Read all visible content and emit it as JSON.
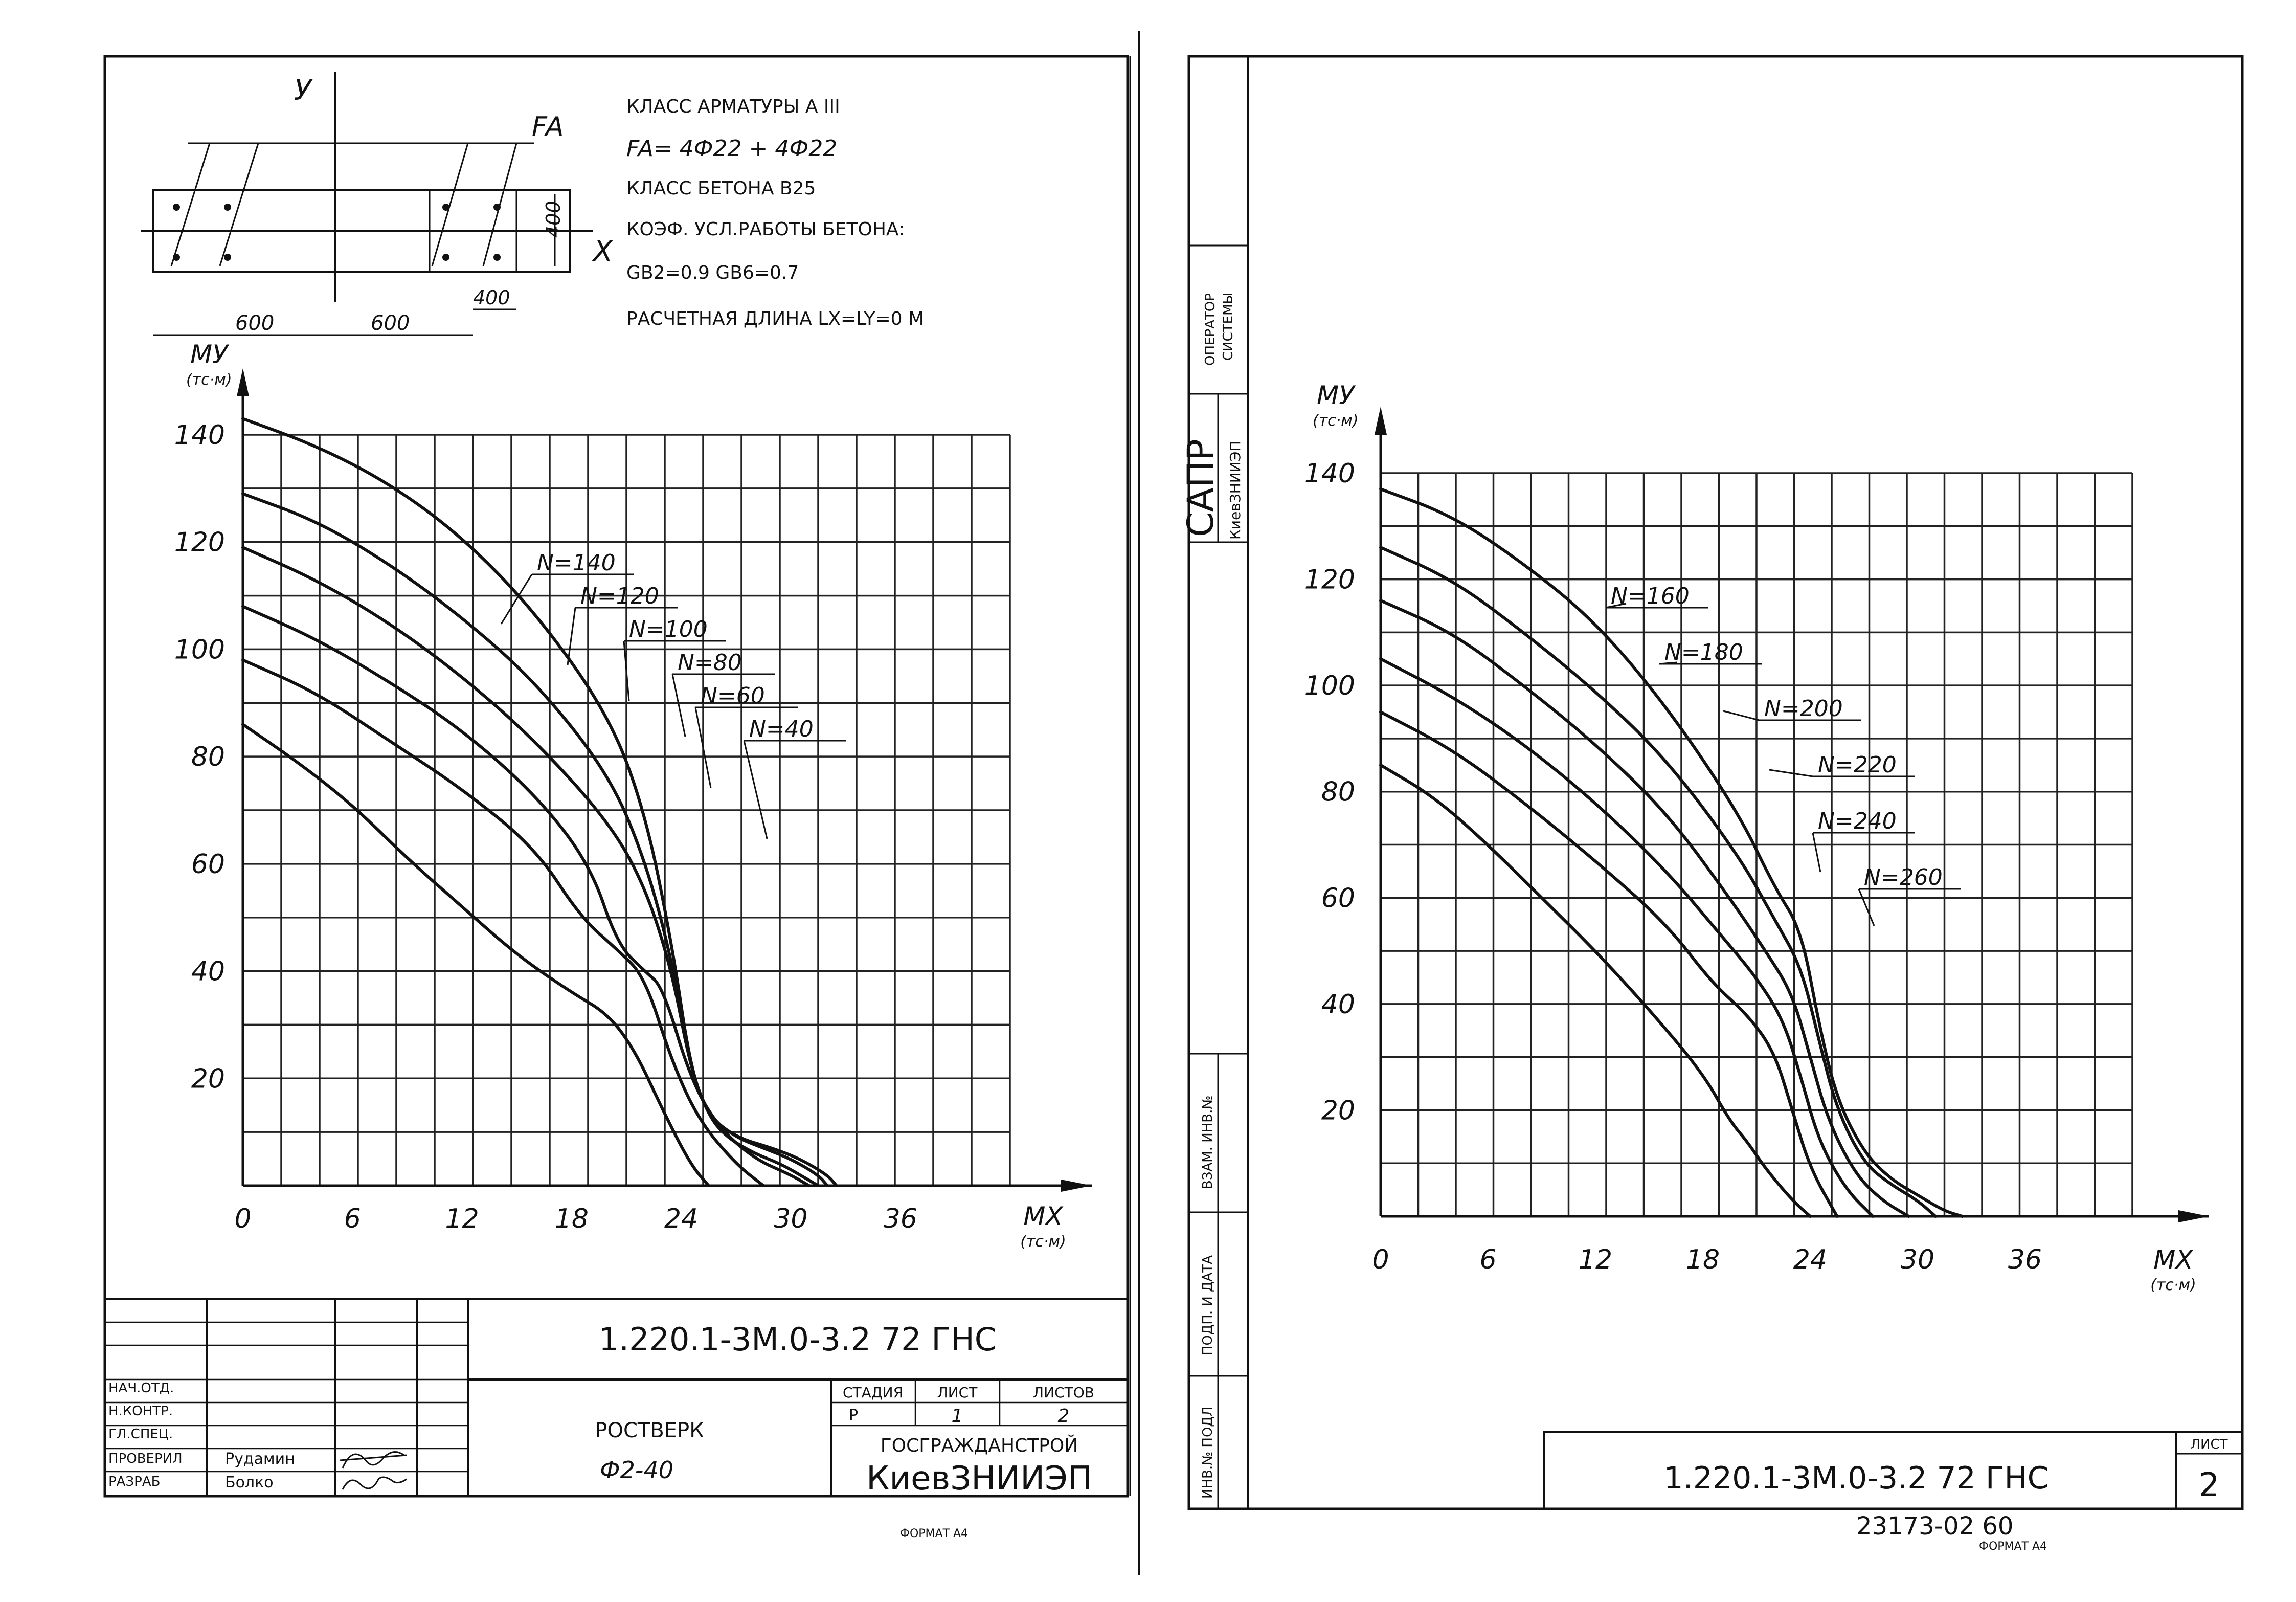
{
  "left_sheet": {
    "section_axis_y": "У",
    "section_axis_x": "X",
    "section_fa_label": "FA",
    "section_dim_height": "400",
    "section_dim_cover": "400",
    "section_dim_left": "600",
    "section_dim_right": "600",
    "notes": {
      "line1": "КЛАСС АРМАТУРЫ      А III",
      "line2": "FA= 4Ф22 + 4Ф22",
      "line3": "КЛАСС БЕТОНА      В25",
      "line4": "КОЭФ. УСЛ.РАБОТЫ БЕТОНА:",
      "line5": "GB2=0.9        GB6=0.7",
      "line6": "РАСЧЕТНАЯ ДЛИНА LX=LY=0 М"
    },
    "title_block": {
      "designation": "1.220.1-3М.0-3.2 72 ГНС",
      "name_line1": "РОСТВЕРК",
      "name_line2": "Ф2-40",
      "stage_header": "СТАДИЯ",
      "sheet_header": "ЛИСТ",
      "sheets_header": "ЛИСТОВ",
      "stage_value": "Р",
      "sheet_value": "1",
      "sheets_value": "2",
      "org_line1": "ГОСГРАЖДАНСТРОЙ",
      "org_line2": "КиевЗНИИЭП",
      "roles": [
        "НАЧ.ОТД.",
        "Н.КОНТР.",
        "ГЛ.СПЕЦ.",
        "ПРОВЕРИЛ",
        "РАЗРАБ"
      ],
      "names": [
        "",
        "",
        "",
        "Рудамин",
        "Болко"
      ],
      "format": "ФОРМАТ А4"
    }
  },
  "right_sheet": {
    "side_stamp": {
      "operator_line1": "ОПЕРАТОР",
      "operator_line2": "СИСТЕМЫ",
      "sapr": "САПР",
      "sapr_org": "КиевЗНИИЭП",
      "vzam": "ВЗАМ. ИНВ.№",
      "podp": "ПОДП. И ДАТА",
      "inv": "ИНВ.№ ПОДЛ"
    },
    "title_block": {
      "designation": "1.220.1-3М.0-3.2 72 ГНС",
      "sheet_header": "ЛИСТ",
      "sheet_value": "2"
    },
    "footer_number": "23173-02  60",
    "format": "ФОРМАТ А4"
  },
  "chart_data": [
    {
      "type": "line",
      "xlabel": "МХ",
      "xunit": "(тс·м)",
      "ylabel": "МУ",
      "yunit": "(тс·м)",
      "xlim": [
        0,
        42
      ],
      "ylim": [
        0,
        140
      ],
      "xticks": [
        0,
        6,
        12,
        18,
        24,
        30,
        36
      ],
      "yticks": [
        20,
        40,
        60,
        80,
        100,
        120,
        140
      ],
      "grid": true,
      "series": [
        {
          "name": "N=140",
          "x": [
            0,
            4,
            8,
            12,
            16,
            20,
            22,
            23.5,
            24.5,
            25.5,
            27,
            29,
            30.5,
            32,
            32.5
          ],
          "y": [
            143,
            138,
            131,
            121,
            107,
            88,
            70,
            45,
            22,
            13,
            9,
            7,
            5,
            2,
            0
          ]
        },
        {
          "name": "N=120",
          "x": [
            0,
            4,
            8,
            12,
            16,
            20,
            22,
            23.5,
            24.5,
            25.5,
            27,
            28.5,
            30,
            31.5,
            32
          ],
          "y": [
            129,
            124,
            116,
            106,
            94,
            77,
            61,
            42,
            22,
            13,
            9,
            7,
            5,
            2,
            0
          ]
        },
        {
          "name": "N=100",
          "x": [
            0,
            4,
            8,
            12,
            16,
            20,
            22,
            23.5,
            24.5,
            25.5,
            26.5,
            28,
            29.5,
            31,
            31.5
          ],
          "y": [
            119,
            113,
            105,
            95,
            83,
            68,
            56,
            40,
            22,
            13,
            9,
            6,
            4,
            1,
            0
          ]
        },
        {
          "name": "N=80",
          "x": [
            0,
            4,
            8,
            12,
            16,
            19,
            20.5,
            22,
            23,
            24.5,
            26,
            28,
            30,
            31
          ],
          "y": [
            108,
            102,
            94,
            85,
            73,
            60,
            45,
            40,
            37,
            20,
            11,
            5,
            2,
            0
          ]
        },
        {
          "name": "N=60",
          "x": [
            0,
            4,
            8,
            12,
            16,
            18.5,
            20.5,
            22,
            23.5,
            25,
            27,
            28.5
          ],
          "y": [
            98,
            92,
            83,
            74,
            63,
            50,
            44,
            39,
            23,
            12,
            4,
            0
          ]
        },
        {
          "name": "N=40",
          "x": [
            0,
            3,
            6,
            9,
            12,
            15,
            18,
            20,
            21.5,
            23,
            24.5,
            25.5
          ],
          "y": [
            86,
            79,
            71,
            61,
            52,
            43,
            36,
            32,
            25,
            14,
            4,
            0
          ]
        }
      ]
    },
    {
      "type": "line",
      "xlabel": "МХ",
      "xunit": "(тс·м)",
      "ylabel": "МУ",
      "yunit": "(тс·м)",
      "xlim": [
        0,
        42
      ],
      "ylim": [
        0,
        140
      ],
      "xticks": [
        0,
        6,
        12,
        18,
        24,
        30,
        36
      ],
      "yticks": [
        20,
        40,
        60,
        80,
        100,
        120,
        140
      ],
      "grid": true,
      "series": [
        {
          "name": "N=160",
          "x": [
            0,
            4,
            8,
            12,
            16,
            20,
            22,
            23.5,
            24.5,
            25.5,
            27,
            28.5,
            30,
            31.5,
            32.5
          ],
          "y": [
            137,
            132,
            123,
            112,
            96,
            76,
            62,
            54,
            36,
            22,
            12,
            7,
            4,
            1,
            0
          ]
        },
        {
          "name": "N=180",
          "x": [
            0,
            4,
            8,
            12,
            16,
            20,
            22,
            23.5,
            24.5,
            25.5,
            27,
            28.5,
            30,
            31
          ],
          "y": [
            126,
            120,
            110,
            99,
            86,
            68,
            56,
            47,
            33,
            20,
            10,
            6,
            3,
            0
          ]
        },
        {
          "name": "N=200",
          "x": [
            0,
            4,
            8,
            12,
            16,
            19.5,
            21.5,
            23,
            24,
            25,
            26.5,
            28,
            29.5
          ],
          "y": [
            116,
            110,
            100,
            89,
            76,
            60,
            50,
            42,
            30,
            18,
            8,
            3,
            0
          ]
        },
        {
          "name": "N=220",
          "x": [
            0,
            4,
            8,
            12,
            16,
            19,
            21,
            22.5,
            23.5,
            24.5,
            26,
            27.5
          ],
          "y": [
            105,
            98,
            89,
            78,
            65,
            53,
            45,
            37,
            26,
            14,
            5,
            0
          ]
        },
        {
          "name": "N=240",
          "x": [
            0,
            4,
            8,
            12,
            16,
            18.5,
            20.5,
            22,
            23,
            24,
            25.5
          ],
          "y": [
            95,
            88,
            78,
            67,
            55,
            44,
            38,
            31,
            20,
            9,
            0
          ]
        },
        {
          "name": "N=260",
          "x": [
            0,
            3,
            6,
            9,
            12,
            15,
            18,
            19.5,
            20.5,
            21.5,
            23,
            24
          ],
          "y": [
            85,
            79,
            70,
            60,
            50,
            39,
            27,
            18,
            14,
            9,
            3,
            0
          ]
        }
      ]
    }
  ]
}
